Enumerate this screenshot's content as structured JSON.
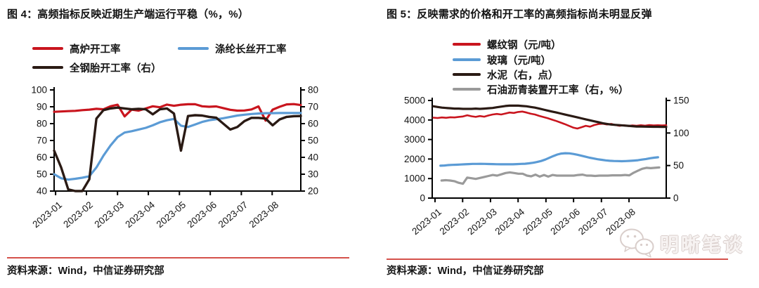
{
  "page": {
    "background": "#ffffff",
    "divider_color": "#d5514b"
  },
  "watermark": {
    "text": "明晰笔谈",
    "icon": "wechat-icon",
    "color": "#d9cecb"
  },
  "charts": [
    {
      "title": "图 4：高频指标反映近期生产端运行平稳（%，%）",
      "source": "资料来源：Wind，中信证券研究部",
      "chart_data": {
        "type": "line",
        "title": "高频指标反映近期生产端运行平稳（%，%）",
        "x_tick_labels": [
          "2023-01",
          "2023-02",
          "2023-03",
          "2023-04",
          "2023-05",
          "2023-06",
          "2023-07",
          "2023-08"
        ],
        "x_tick_positions": [
          0.006,
          0.131,
          0.257,
          0.382,
          0.508,
          0.633,
          0.759,
          0.884
        ],
        "left_axis": {
          "min": 40,
          "max": 100,
          "ticks": [
            100,
            90,
            80,
            70,
            60,
            50,
            40
          ]
        },
        "right_axis": {
          "min": 20,
          "max": 80,
          "ticks": [
            80,
            70,
            60,
            50,
            40,
            30,
            20
          ]
        },
        "grid": false,
        "legend_position": "top",
        "series": [
          {
            "name": "高炉开工率",
            "axis": "left",
            "color": "#c9151e",
            "width": 3.2,
            "x0": 0,
            "x1": 1,
            "values": [
              87,
              87.2,
              87.4,
              87.6,
              88,
              88.3,
              88.8,
              88.5,
              90.3,
              91.2,
              84.3,
              88.3,
              87.7,
              89,
              90.3,
              89.7,
              91.3,
              90.6,
              91.2,
              91.5,
              91.5,
              90.3,
              90,
              90.2,
              89.2,
              88.2,
              87.7,
              87.8,
              88.4,
              90.2,
              81.8,
              88.3,
              90,
              91.4,
              91.6,
              91
            ]
          },
          {
            "name": "涤纶长丝开工率",
            "axis": "left",
            "color": "#5b9bd5",
            "width": 3.2,
            "x0": 0,
            "x1": 1,
            "values": [
              50,
              47.6,
              46.8,
              47.3,
              47.9,
              48.8,
              54,
              61,
              67,
              72,
              74.7,
              75.5,
              76.5,
              77.5,
              79,
              80.8,
              82,
              82.8,
              78.8,
              78,
              79.5,
              81,
              82,
              82.6,
              83.2,
              84,
              84.8,
              85.3,
              85.7,
              86,
              86.2,
              86.2,
              86.3,
              86.3,
              86.3,
              86.3
            ]
          },
          {
            "name": "全钢胎开工率（右）",
            "axis": "right",
            "color": "#2a1a14",
            "width": 3.4,
            "x0": 0,
            "x1": 1,
            "values": [
              44,
              34,
              21,
              15,
              17,
              27,
              63,
              68,
              69,
              69.5,
              69,
              68.5,
              68.8,
              68.5,
              65.5,
              68.5,
              69,
              66,
              44,
              64.5,
              65,
              64.8,
              64,
              63.5,
              60,
              56.5,
              58,
              61.5,
              63.4,
              63.4,
              63,
              59,
              62.5,
              64,
              64.4,
              64.5
            ]
          }
        ]
      }
    },
    {
      "title": "图 5：反映需求的价格和开工率的高频指标尚未明显反弹",
      "source": "资料来源：Wind，中信证券研究部",
      "chart_data": {
        "type": "line",
        "title": "反映需求的价格和开工率的高频指标尚未明显反弹",
        "x_tick_labels": [
          "2023-01",
          "2023-02",
          "2023-03",
          "2023-04",
          "2023-05",
          "2023-06",
          "2023-07",
          "2023-08"
        ],
        "x_tick_positions": [
          0.012,
          0.13,
          0.249,
          0.367,
          0.486,
          0.604,
          0.723,
          0.841
        ],
        "left_axis": {
          "min": 0,
          "max": 5000,
          "ticks": [
            5000,
            4000,
            3000,
            2000,
            1000,
            0
          ]
        },
        "right_axis": {
          "min": 0,
          "max": 150,
          "ticks": [
            150,
            100,
            50,
            0
          ]
        },
        "grid": false,
        "legend_position": "top",
        "series": [
          {
            "name": "螺纹钢（元/吨）",
            "axis": "left",
            "color": "#c9151e",
            "width": 2.6,
            "x0": 0.005,
            "x1": 1,
            "values": [
              4120,
              4100,
              4130,
              4110,
              4140,
              4130,
              4160,
              4180,
              4240,
              4190,
              4160,
              4200,
              4170,
              4230,
              4280,
              4310,
              4280,
              4330,
              4380,
              4360,
              4410,
              4430,
              4380,
              4320,
              4280,
              4210,
              4150,
              4090,
              4020,
              3950,
              3870,
              3790,
              3700,
              3610,
              3560,
              3630,
              3700,
              3660,
              3740,
              3790,
              3810,
              3770,
              3800,
              3740,
              3700,
              3730,
              3690,
              3720,
              3700,
              3730,
              3710,
              3740,
              3720,
              3730,
              3720,
              3730
            ]
          },
          {
            "name": "玻璃（元/吨）",
            "axis": "left",
            "color": "#5b9bd5",
            "width": 3.2,
            "x0": 0.035,
            "x1": 0.965,
            "values": [
              1660,
              1670,
              1690,
              1700,
              1710,
              1720,
              1730,
              1740,
              1750,
              1750,
              1755,
              1750,
              1745,
              1740,
              1735,
              1730,
              1730,
              1735,
              1730,
              1740,
              1750,
              1760,
              1780,
              1810,
              1850,
              1900,
              1970,
              2060,
              2150,
              2230,
              2280,
              2300,
              2290,
              2260,
              2220,
              2170,
              2120,
              2070,
              2030,
              1990,
              1960,
              1930,
              1910,
              1900,
              1895,
              1890,
              1895,
              1905,
              1920,
              1940,
              1970,
              2000,
              2040,
              2070,
              2090
            ]
          },
          {
            "name": "水泥（右，点）",
            "axis": "right",
            "color": "#2a1a14",
            "width": 3.2,
            "x0": 0.005,
            "x1": 1,
            "values": [
              141,
              140,
              139,
              138.5,
              138,
              137.5,
              137.5,
              137,
              137,
              137,
              137.5,
              137,
              137.5,
              138,
              138.5,
              139.5,
              140.5,
              141.5,
              142,
              142,
              142,
              141.5,
              141,
              140,
              139,
              137.5,
              136,
              134.5,
              133,
              131.5,
              130,
              128.5,
              127,
              125.5,
              124,
              122.5,
              121,
              119.5,
              118,
              116.5,
              115,
              114,
              113,
              112.5,
              112,
              111.5,
              111,
              110.5,
              110,
              110,
              109.8,
              109.6,
              109.5,
              109.5,
              109.4,
              109.4
            ]
          },
          {
            "name": "石油沥青装置开工率（右，%）",
            "axis": "right",
            "color": "#9a9a9a",
            "width": 3.2,
            "x0": 0.04,
            "x1": 0.97,
            "values": [
              27,
              27.5,
              27,
              26,
              23.5,
              22,
              31.5,
              30.5,
              29.5,
              31,
              32.5,
              34,
              35.5,
              34.5,
              36.5,
              38.5,
              39.5,
              38.5,
              37.5,
              37.5,
              34.5,
              33.5,
              36,
              33,
              35.5,
              33,
              35.5,
              34.5,
              34.5,
              34.5,
              34.5,
              34.5,
              35.5,
              36,
              34.5,
              34.5,
              34,
              34.5,
              34.5,
              34.5,
              35,
              35,
              35,
              35.5,
              35,
              39,
              42,
              45,
              46.5,
              46,
              46.5,
              47
            ]
          }
        ]
      }
    }
  ]
}
